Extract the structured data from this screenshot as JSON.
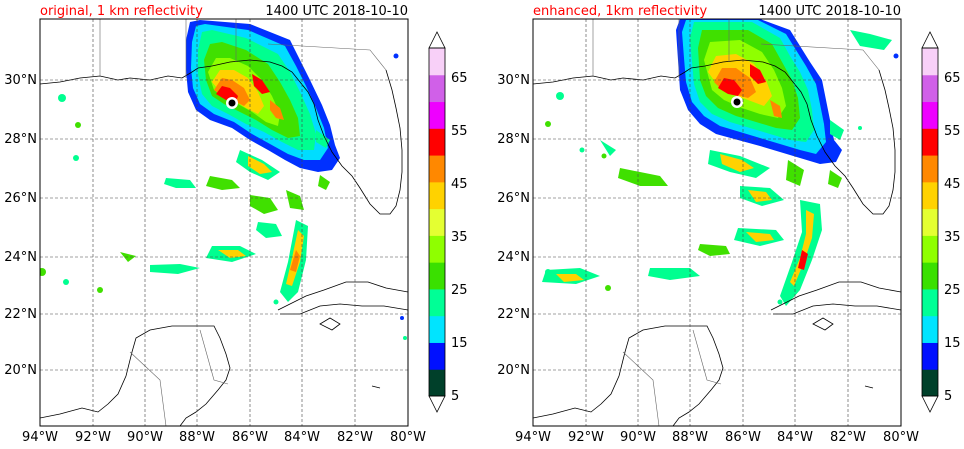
{
  "panels": [
    {
      "title_left": "original, 1 km reflectivity",
      "title_right": "1400 UTC 2018-10-10",
      "x_ticks": [
        "94°W",
        "92°W",
        "90°W",
        "88°W",
        "86°W",
        "84°W",
        "82°W",
        "80°W"
      ],
      "y_ticks": [
        "30°N",
        "28°N",
        "26°N",
        "24°N",
        "22°N",
        "20°N"
      ]
    },
    {
      "title_left": "enhanced, 1km reflectivity",
      "title_right": "1400 UTC 2018-10-10",
      "x_ticks": [
        "94°W",
        "92°W",
        "90°W",
        "88°W",
        "86°W",
        "84°W",
        "82°W",
        "80°W"
      ],
      "y_ticks": [
        "30°N",
        "28°N",
        "26°N",
        "24°N",
        "22°N",
        "20°N"
      ]
    }
  ],
  "colorbar": {
    "labels": [
      "5",
      "15",
      "25",
      "35",
      "45",
      "55",
      "65"
    ],
    "colors": [
      "#00402a",
      "#0010ff",
      "#00e4ff",
      "#00ff96",
      "#3ae000",
      "#8fff00",
      "#e4ff32",
      "#ffd200",
      "#ff8800",
      "#ff0000",
      "#ee00ff",
      "#d060e8",
      "#f8d0f8"
    ]
  },
  "map_colors": {
    "weak": "#0030ff",
    "light": "#00ddff",
    "moderate": "#00ff90",
    "green": "#40e000",
    "yellow": "#ffd200",
    "orange": "#ff8800",
    "red": "#ff0000",
    "coast": "#000000",
    "grid": "#444444"
  }
}
